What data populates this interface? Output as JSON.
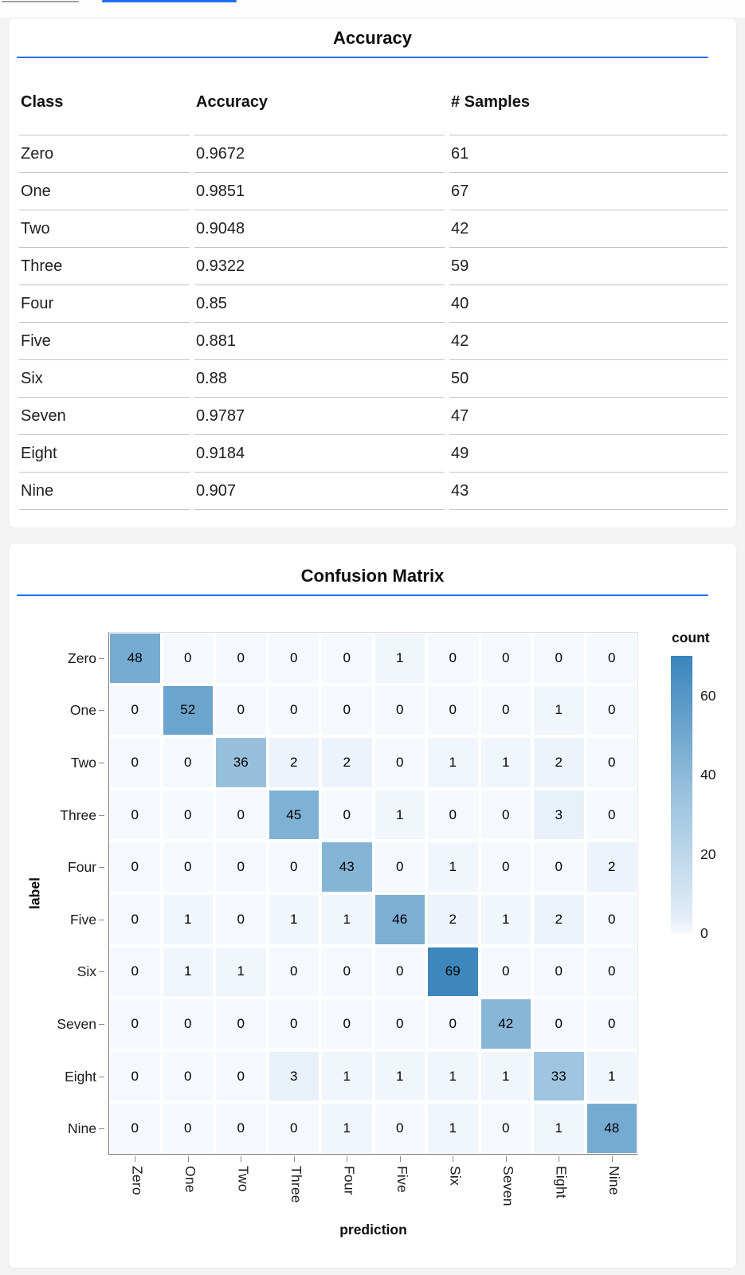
{
  "theme": {
    "accent_blue": "#1d6ff2",
    "tab_inactive_gray": "#a2a2a2",
    "row_border_gray": "#c4c4c4"
  },
  "top_tabs": {
    "inactive_indicator": "tab-underline",
    "active_indicator": "tab-underline-active"
  },
  "accuracy_card": {
    "title": "Accuracy",
    "table": {
      "columns": [
        "Class",
        "Accuracy",
        "# Samples"
      ],
      "rows": [
        [
          "Zero",
          "0.9672",
          "61"
        ],
        [
          "One",
          "0.9851",
          "67"
        ],
        [
          "Two",
          "0.9048",
          "42"
        ],
        [
          "Three",
          "0.9322",
          "59"
        ],
        [
          "Four",
          "0.85",
          "40"
        ],
        [
          "Five",
          "0.881",
          "42"
        ],
        [
          "Six",
          "0.88",
          "50"
        ],
        [
          "Seven",
          "0.9787",
          "47"
        ],
        [
          "Eight",
          "0.9184",
          "49"
        ],
        [
          "Nine",
          "0.907",
          "43"
        ]
      ]
    }
  },
  "confusion_card": {
    "title": "Confusion Matrix"
  },
  "chart_data": {
    "type": "heatmap",
    "title": "Confusion Matrix",
    "xlabel": "prediction",
    "ylabel": "label",
    "x_categories": [
      "Zero",
      "One",
      "Two",
      "Three",
      "Four",
      "Five",
      "Six",
      "Seven",
      "Eight",
      "Nine"
    ],
    "y_categories": [
      "Zero",
      "One",
      "Two",
      "Three",
      "Four",
      "Five",
      "Six",
      "Seven",
      "Eight",
      "Nine"
    ],
    "values": [
      [
        48,
        0,
        0,
        0,
        0,
        1,
        0,
        0,
        0,
        0
      ],
      [
        0,
        52,
        0,
        0,
        0,
        0,
        0,
        0,
        1,
        0
      ],
      [
        0,
        0,
        36,
        2,
        2,
        0,
        1,
        1,
        2,
        0
      ],
      [
        0,
        0,
        0,
        45,
        0,
        1,
        0,
        0,
        3,
        0
      ],
      [
        0,
        0,
        0,
        0,
        43,
        0,
        1,
        0,
        0,
        2
      ],
      [
        0,
        1,
        0,
        1,
        1,
        46,
        2,
        1,
        2,
        0
      ],
      [
        0,
        1,
        1,
        0,
        0,
        0,
        69,
        0,
        0,
        0
      ],
      [
        0,
        0,
        0,
        0,
        0,
        0,
        0,
        42,
        0,
        0
      ],
      [
        0,
        0,
        0,
        3,
        1,
        1,
        1,
        1,
        33,
        1
      ],
      [
        0,
        0,
        0,
        0,
        1,
        0,
        1,
        0,
        1,
        48
      ]
    ],
    "legend": {
      "title": "count",
      "ticks": [
        60,
        40,
        20,
        0
      ],
      "domain": [
        0,
        70
      ]
    },
    "color_scale_stops": [
      [
        0,
        "#f5f9fd"
      ],
      [
        5,
        "#dfebf6"
      ],
      [
        35,
        "#9ac2de"
      ],
      [
        70,
        "#3a85bc"
      ]
    ],
    "grid": false,
    "legend_position": "right"
  }
}
